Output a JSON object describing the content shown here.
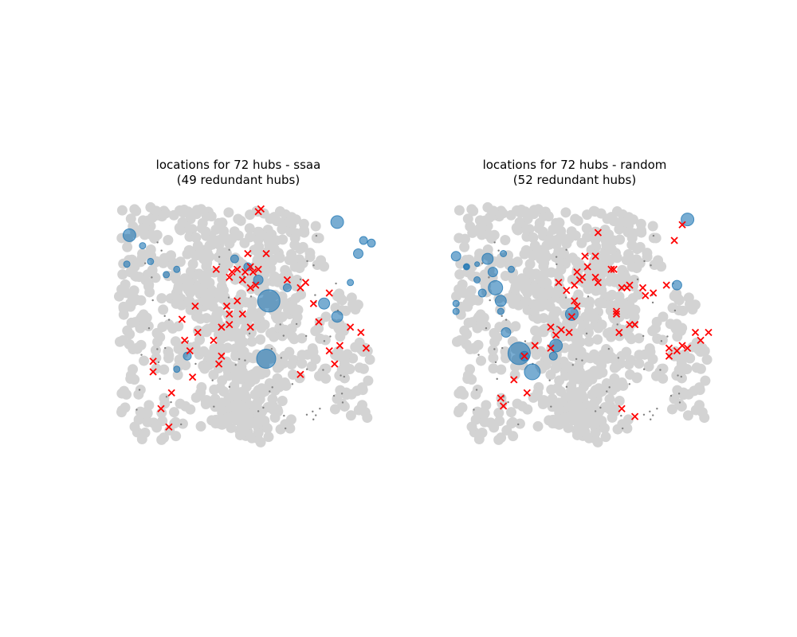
{
  "colors": {
    "background_points": "#d3d3d3",
    "small_points": "#808080",
    "hub_fill": "#1f77b4",
    "redundant": "#ff0000"
  },
  "chart_data": [
    {
      "type": "scatter",
      "title_line1": "locations for 72 hubs - ssaa",
      "title_line2": "(49 redundant hubs)",
      "axes": "off",
      "hubs": [
        [
          8,
          18,
          8
        ],
        [
          13,
          22,
          4
        ],
        [
          16,
          28,
          4
        ],
        [
          48,
          27,
          5
        ],
        [
          53,
          30,
          5
        ],
        [
          57,
          35,
          6
        ],
        [
          61,
          43,
          14
        ],
        [
          68,
          38,
          5
        ],
        [
          82,
          44,
          7
        ],
        [
          87,
          49,
          7
        ],
        [
          60,
          65,
          12
        ],
        [
          30,
          64,
          5
        ],
        [
          22,
          33,
          4
        ],
        [
          26,
          31,
          4
        ],
        [
          7,
          29,
          4
        ],
        [
          26,
          69,
          4
        ],
        [
          87,
          13,
          8
        ],
        [
          92,
          36,
          4
        ],
        [
          95,
          25,
          6
        ],
        [
          97,
          20,
          5
        ],
        [
          100,
          21,
          5
        ]
      ],
      "redundant": [
        [
          17,
          70
        ],
        [
          17,
          66
        ],
        [
          23,
          91
        ],
        [
          20,
          84
        ],
        [
          24,
          78
        ],
        [
          32,
          72
        ],
        [
          31,
          62
        ],
        [
          29,
          58
        ],
        [
          34,
          55
        ],
        [
          28,
          50
        ],
        [
          33,
          45
        ],
        [
          42,
          67
        ],
        [
          43,
          64
        ],
        [
          40,
          58
        ],
        [
          43,
          53
        ],
        [
          46,
          52
        ],
        [
          45,
          45
        ],
        [
          46,
          34
        ],
        [
          47,
          32
        ],
        [
          51,
          35
        ],
        [
          52,
          32
        ],
        [
          54,
          38
        ],
        [
          54,
          30
        ],
        [
          56,
          37
        ],
        [
          55,
          32
        ],
        [
          53,
          25
        ],
        [
          51,
          48
        ],
        [
          54,
          53
        ],
        [
          46,
          48
        ],
        [
          41,
          31
        ],
        [
          49,
          31
        ],
        [
          49,
          43
        ],
        [
          57,
          31
        ],
        [
          60,
          25
        ],
        [
          57,
          9
        ],
        [
          58,
          8
        ],
        [
          78,
          44
        ],
        [
          80,
          51
        ],
        [
          68,
          35
        ],
        [
          84,
          62
        ],
        [
          86,
          67
        ],
        [
          88,
          60
        ],
        [
          92,
          53
        ],
        [
          96,
          55
        ],
        [
          98,
          61
        ],
        [
          73,
          38
        ],
        [
          75,
          36
        ],
        [
          73,
          71
        ],
        [
          84,
          40
        ]
      ]
    },
    {
      "type": "scatter",
      "title_line1": "locations for 72 hubs - random",
      "title_line2": "(52 redundant hubs)",
      "axes": "off",
      "hubs": [
        [
          4,
          26,
          6
        ],
        [
          8,
          30,
          4
        ],
        [
          12,
          35,
          4
        ],
        [
          14,
          40,
          5
        ],
        [
          16,
          27,
          7
        ],
        [
          18,
          32,
          6
        ],
        [
          19,
          38,
          9
        ],
        [
          21,
          43,
          7
        ],
        [
          21,
          47,
          4
        ],
        [
          23,
          55,
          6
        ],
        [
          28,
          63,
          14
        ],
        [
          33,
          70,
          10
        ],
        [
          30,
          64,
          6
        ],
        [
          41,
          64,
          5
        ],
        [
          42,
          60,
          8
        ],
        [
          48,
          48,
          8
        ],
        [
          8,
          30,
          3
        ],
        [
          12,
          29,
          3
        ],
        [
          25,
          31,
          4
        ],
        [
          22,
          25,
          4
        ],
        [
          4,
          44,
          4
        ],
        [
          4,
          47,
          4
        ],
        [
          92,
          12,
          8
        ],
        [
          88,
          37,
          6
        ]
      ],
      "redundant": [
        [
          22,
          83
        ],
        [
          21,
          80
        ],
        [
          26,
          73
        ],
        [
          31,
          78
        ],
        [
          30,
          64
        ],
        [
          34,
          60
        ],
        [
          40,
          61
        ],
        [
          42,
          56
        ],
        [
          40,
          53
        ],
        [
          44,
          54
        ],
        [
          47,
          55
        ],
        [
          48,
          49
        ],
        [
          50,
          45
        ],
        [
          49,
          43
        ],
        [
          46,
          39
        ],
        [
          49,
          37
        ],
        [
          43,
          36
        ],
        [
          50,
          32
        ],
        [
          51,
          35
        ],
        [
          52,
          34
        ],
        [
          57,
          34
        ],
        [
          58,
          36
        ],
        [
          53,
          26
        ],
        [
          54,
          30
        ],
        [
          57,
          26
        ],
        [
          63,
          31
        ],
        [
          64,
          31
        ],
        [
          70,
          37
        ],
        [
          65,
          48
        ],
        [
          69,
          38
        ],
        [
          72,
          52
        ],
        [
          66,
          55
        ],
        [
          65,
          47
        ],
        [
          67,
          38
        ],
        [
          58,
          17
        ],
        [
          85,
          61
        ],
        [
          85,
          64
        ],
        [
          88,
          62
        ],
        [
          90,
          60
        ],
        [
          92,
          61
        ],
        [
          95,
          55
        ],
        [
          97,
          58
        ],
        [
          100,
          55
        ],
        [
          79,
          40
        ],
        [
          75,
          38
        ],
        [
          84,
          37
        ],
        [
          76,
          41
        ],
        [
          70,
          52
        ],
        [
          87,
          20
        ],
        [
          67,
          84
        ],
        [
          72,
          87
        ],
        [
          90,
          14
        ]
      ]
    }
  ]
}
